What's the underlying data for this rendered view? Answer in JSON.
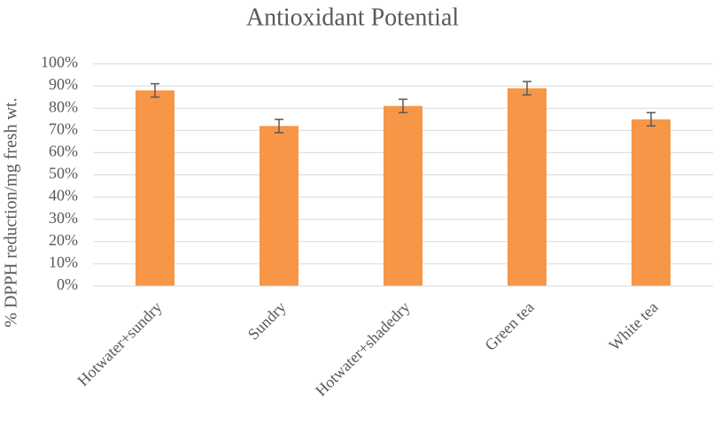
{
  "chart_data": {
    "type": "bar",
    "title": "Antioxidant Potential",
    "y_label": "% DPPH reduction/mg fresh wt.",
    "categories": [
      "Hotwater+sundry",
      "Sundry",
      "Hotwater+shadedry",
      "Green tea",
      "White tea"
    ],
    "values": [
      88,
      72,
      81,
      89,
      75
    ],
    "errors": [
      3,
      3,
      3,
      3,
      3
    ],
    "color": "#f79646",
    "ylim": [
      0,
      100
    ],
    "yticks": [
      {
        "value": 0,
        "label": "0%"
      },
      {
        "value": 10,
        "label": "10%"
      },
      {
        "value": 20,
        "label": "20%"
      },
      {
        "value": 30,
        "label": "30%"
      },
      {
        "value": 40,
        "label": "40%"
      },
      {
        "value": 50,
        "label": "50%"
      },
      {
        "value": 60,
        "label": "60%"
      },
      {
        "value": 70,
        "label": "70%"
      },
      {
        "value": 80,
        "label": "80%"
      },
      {
        "value": 90,
        "label": "90%"
      },
      {
        "value": 100,
        "label": "100%"
      }
    ],
    "grid": true
  }
}
